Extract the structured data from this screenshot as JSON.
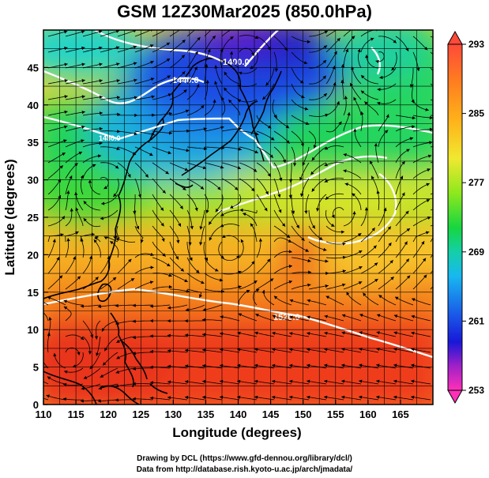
{
  "title": "GSM 12Z30Mar2025 (850.0hPa)",
  "map": {
    "xlabel": "Longitude (degrees)",
    "ylabel": "Latitude  (degrees)",
    "lon_ticks": [
      "110",
      "115",
      "120",
      "125",
      "130",
      "135",
      "140",
      "145",
      "150",
      "155",
      "160",
      "165"
    ],
    "lat_ticks": [
      "0",
      "5",
      "10",
      "15",
      "20",
      "25",
      "30",
      "35",
      "40",
      "45"
    ],
    "lon_range": [
      110,
      170
    ],
    "lat_range": [
      0,
      50
    ],
    "contour_labels": [
      "1400.0",
      "1440.0",
      "1480.0",
      "1520.0"
    ]
  },
  "colorbar": {
    "tick_labels": [
      "293",
      "285",
      "277",
      "269",
      "261",
      "253"
    ],
    "range": [
      253,
      293
    ]
  },
  "credits": {
    "line1": "Drawing by DCL (https://www.gfd-dennou.org/library/dcl/)",
    "line2": "Data from http://database.rish.kyoto-u.ac.jp/arch/jmadata/"
  }
}
